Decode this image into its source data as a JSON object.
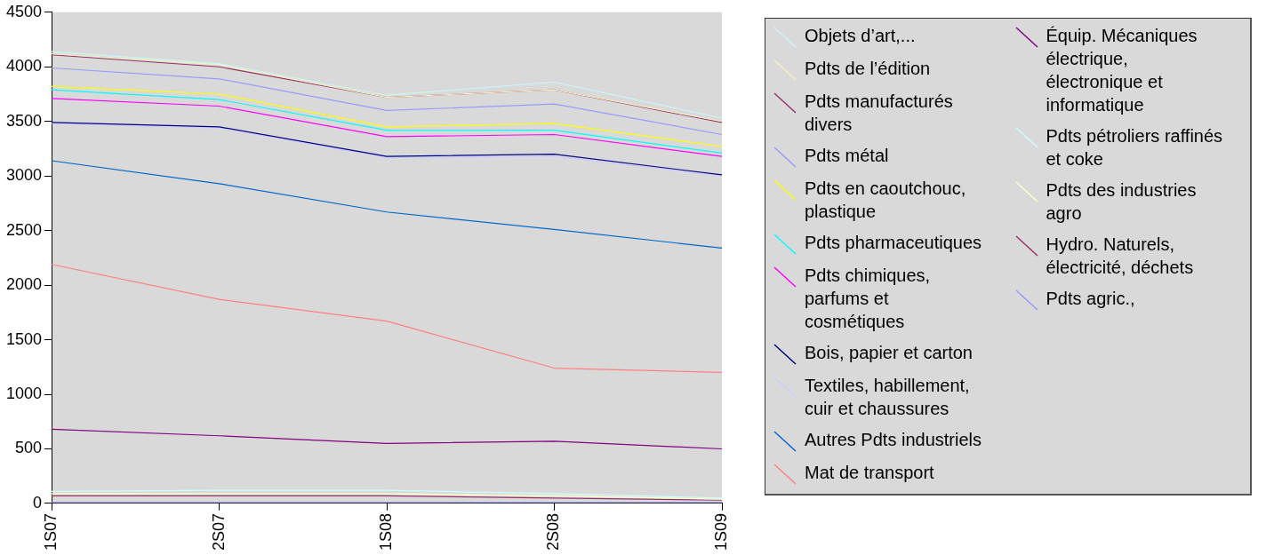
{
  "chart_data": {
    "type": "line",
    "categories": [
      "1S07",
      "2S07",
      "1S08",
      "2S08",
      "1S09"
    ],
    "ylim": [
      0,
      4500
    ],
    "yticks": [
      0,
      500,
      1000,
      1500,
      2000,
      2500,
      3000,
      3500,
      4000,
      4500
    ],
    "grid": false,
    "legend": "right",
    "marker": "none",
    "series": [
      {
        "name": "Objets d’art,...",
        "color": "#ccf5f5",
        "values": [
          4140,
          4030,
          3740,
          3860,
          3530
        ]
      },
      {
        "name": "Pdts de l’édition",
        "color": "#f5f0c0",
        "values": [
          4120,
          4020,
          3720,
          3790,
          3500
        ]
      },
      {
        "name": "Pdts manufacturés divers",
        "color": "#993366",
        "values": [
          4110,
          4000,
          3720,
          3790,
          3490
        ]
      },
      {
        "name": "Pdts métal",
        "color": "#9999ff",
        "values": [
          3990,
          3890,
          3600,
          3660,
          3380
        ]
      },
      {
        "name": "Pdts en caoutchouc, plastique",
        "color": "#ffff00",
        "values": [
          3820,
          3750,
          3450,
          3480,
          3270
        ]
      },
      {
        "name": "Pdts pharmaceutiques",
        "color": "#00ffff",
        "values": [
          3790,
          3700,
          3420,
          3420,
          3210
        ]
      },
      {
        "name": "Pdts chimiques, parfums et cosmétiques",
        "color": "#ff00ff",
        "values": [
          3710,
          3640,
          3360,
          3380,
          3180
        ]
      },
      {
        "name": "Bois, papier et carton",
        "color": "#000080",
        "values": [
          3490,
          3450,
          3180,
          3200,
          3010
        ]
      },
      {
        "name": "Textiles, habillement, cuir et chaussures",
        "color": "#ccccff",
        "values": [
          3480,
          3440,
          3170,
          3180,
          3000
        ]
      },
      {
        "name": "Autres Pdts industriels",
        "color": "#0066cc",
        "values": [
          3140,
          2930,
          2670,
          2510,
          2340
        ]
      },
      {
        "name": "Mat de transport",
        "color": "#ff8080",
        "values": [
          2190,
          1870,
          1670,
          1240,
          1200
        ]
      },
      {
        "name": "Équip. Mécaniques électrique, électronique et informatique",
        "color": "#800080",
        "values": [
          680,
          620,
          550,
          570,
          500
        ]
      },
      {
        "name": "Pdts pétroliers raffinés et coke",
        "color": "#ccffff",
        "values": [
          110,
          120,
          120,
          90,
          50
        ]
      },
      {
        "name": "Pdts des industries agro",
        "color": "#ffffcc",
        "values": [
          90,
          90,
          90,
          70,
          40
        ]
      },
      {
        "name": "Hydro. Naturels, électricité, déchets",
        "color": "#993366",
        "values": [
          70,
          70,
          70,
          50,
          30
        ]
      },
      {
        "name": "Pdts agric.,",
        "color": "#9999ff",
        "values": [
          10,
          10,
          10,
          10,
          10
        ]
      }
    ]
  }
}
